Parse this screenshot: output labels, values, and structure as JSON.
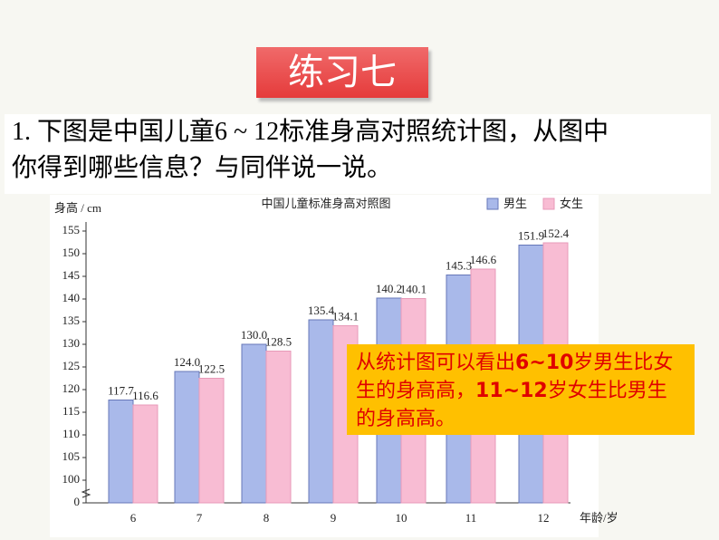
{
  "header": {
    "title": "练习七"
  },
  "question": {
    "lines": [
      "1. 下图是中国儿童6 ~ 12标准身高对照统计图，从图中",
      "你得到哪些信息？与同伴说一说。"
    ]
  },
  "annotation": {
    "segments": [
      "从统计图可以看出",
      "6~10",
      "岁男生比女生的身高高，",
      "11~12",
      "岁女生比男生的身高高。"
    ]
  },
  "chart_data": {
    "type": "bar",
    "title": "中国儿童标准身高对照图",
    "y_label": "身高 / cm",
    "x_label": "年龄/岁",
    "categories": [
      "6",
      "7",
      "8",
      "9",
      "10",
      "11",
      "12"
    ],
    "series": [
      {
        "name": "男生",
        "color": "#a9b9ea",
        "values": [
          117.7,
          124.0,
          130.0,
          135.4,
          140.2,
          145.3,
          151.9
        ],
        "value_labels": [
          "117.7",
          "124.0",
          "130.0",
          "135.4",
          "140.2",
          "145.3",
          "151.9"
        ]
      },
      {
        "name": "女生",
        "color": "#f8bcd3",
        "values": [
          116.6,
          122.5,
          128.5,
          134.1,
          140.1,
          146.6,
          152.4
        ],
        "value_labels": [
          "116.6",
          "122.5",
          "128.5",
          "134.1",
          "140.1",
          "146.6",
          "152.4"
        ]
      }
    ],
    "ylim": [
      0,
      155
    ],
    "y_break": [
      0,
      100
    ],
    "yticks": [
      0,
      100,
      105,
      110,
      115,
      120,
      125,
      130,
      135,
      140,
      145,
      150,
      155
    ],
    "legend": "top-right"
  }
}
